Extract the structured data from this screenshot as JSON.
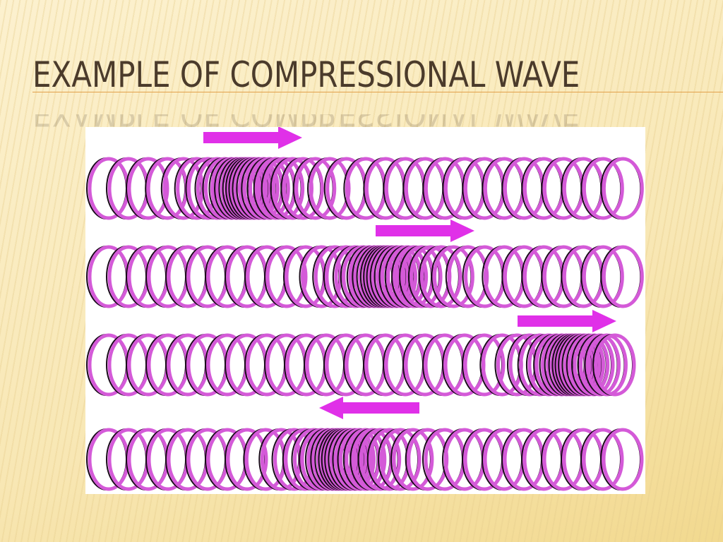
{
  "slide": {
    "title": "EXAMPLE OF COMPRESSIONAL WAVE"
  },
  "figure": {
    "description_rows": [
      {
        "arrow_direction": "right"
      },
      {
        "arrow_direction": "right"
      },
      {
        "arrow_direction": "right"
      },
      {
        "arrow_direction": "left"
      }
    ],
    "colors": {
      "ring": "#d45ad8",
      "ring_outline": "#1a0a1a",
      "arrow": "#e030e8",
      "highlight": "#f0b070"
    }
  },
  "colors": {
    "background": "#fbeec6",
    "title": "#4b3b2b",
    "rule": "#e2a04a"
  }
}
